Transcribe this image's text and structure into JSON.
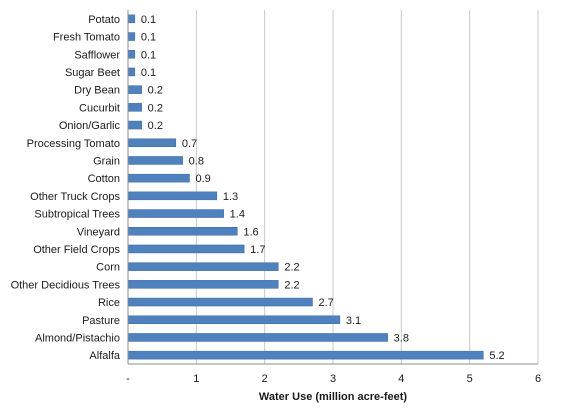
{
  "chart_data": {
    "type": "bar",
    "orientation": "horizontal",
    "categories": [
      "Potato",
      "Fresh Tomato",
      "Safflower",
      "Sugar Beet",
      "Dry Bean",
      "Cucurbit",
      "Onion/Garlic",
      "Processing Tomato",
      "Grain",
      "Cotton",
      "Other Truck Crops",
      "Subtropical Trees",
      "Vineyard",
      "Other Field Crops",
      "Corn",
      "Other Decidious Trees",
      "Rice",
      "Pasture",
      "Almond/Pistachio",
      "Alfalfa"
    ],
    "values": [
      0.1,
      0.1,
      0.1,
      0.1,
      0.2,
      0.2,
      0.2,
      0.7,
      0.8,
      0.9,
      1.3,
      1.4,
      1.6,
      1.7,
      2.2,
      2.2,
      2.7,
      3.1,
      3.8,
      5.2
    ],
    "value_labels": [
      "0.1",
      "0.1",
      "0.1",
      "0.1",
      "0.2",
      "0.2",
      "0.2",
      "0.7",
      "0.8",
      "0.9",
      "1.3",
      "1.4",
      "1.6",
      "1.7",
      "2.2",
      "2.2",
      "2.7",
      "3.1",
      "3.8",
      "5.2"
    ],
    "title": "",
    "xlabel": "Water Use (million acre-feet)",
    "ylabel": "",
    "xlim": [
      0,
      6
    ],
    "x_ticks": [
      "-",
      "1",
      "2",
      "3",
      "4",
      "5",
      "6"
    ],
    "grid": "vertical",
    "legend": "none",
    "colors": {
      "bar": "#4f81bd",
      "bar_edge": "#3a6aa5",
      "grid": "#c8c8c8",
      "axis": "#8c8c8c",
      "text": "#1a1a1a"
    }
  }
}
